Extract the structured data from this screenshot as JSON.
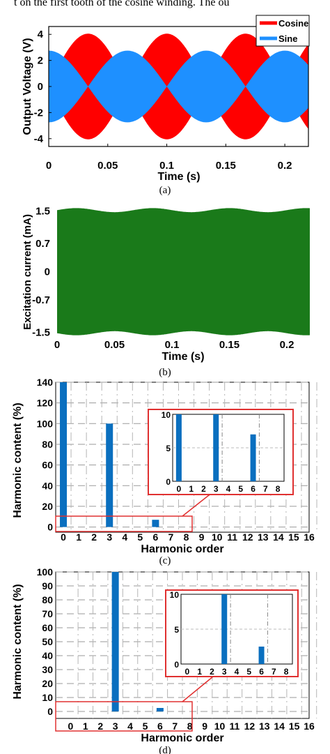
{
  "header_text": "t on the first tooth of the cosine winding. The ou",
  "captions": [
    "(a)",
    "(b)",
    "(c)",
    "(d)"
  ],
  "chart_data": [
    {
      "id": "a",
      "type": "line",
      "xlabel": "Time (s)",
      "ylabel": "Output Voltage (V)",
      "xlim": [
        0,
        0.22
      ],
      "ylim": [
        -4.6,
        4.6
      ],
      "xticks": [
        0,
        0.05,
        0.1,
        0.15,
        0.2
      ],
      "xtick_labels": [
        "0",
        "0.05",
        "0.1",
        "0.15",
        "0.2"
      ],
      "yticks": [
        -4,
        -2,
        0,
        2,
        4
      ],
      "ytick_labels": [
        "-4",
        "-2",
        "0",
        "2",
        "4"
      ],
      "legend": "top-right",
      "series": [
        {
          "name": "Cosine",
          "color": "#ff0000",
          "amplitude": 4.05,
          "period": 0.0667,
          "phase": "cosine-envelope"
        },
        {
          "name": "Sine",
          "color": "#1e90ff",
          "amplitude": 2.75,
          "period": 0.0667,
          "phase": "sine-envelope"
        }
      ]
    },
    {
      "id": "b",
      "type": "area",
      "xlabel": "Time (s)",
      "ylabel": "Excitation current (mA)",
      "xlim": [
        0,
        0.22
      ],
      "ylim": [
        -1.8,
        1.8
      ],
      "xticks": [
        0,
        0.05,
        0.1,
        0.15,
        0.2
      ],
      "xtick_labels": [
        "0",
        "0.05",
        "0.1",
        "0.15",
        "0.2"
      ],
      "yticks": [
        -1.5,
        -0.7,
        0,
        0.7,
        1.5
      ],
      "ytick_labels": [
        "-1.5",
        "-0.7",
        "0",
        "0.7",
        "1.5"
      ],
      "color": "#1a7a1a",
      "envelope_mean": 1.52,
      "envelope_ripple": 0.05
    },
    {
      "id": "c",
      "type": "bar",
      "xlabel": "Harmonic order",
      "ylabel": "Harmonic content (%)",
      "xlim": [
        -0.5,
        16
      ],
      "ylim": [
        -5,
        140
      ],
      "categories": [
        0,
        3,
        6
      ],
      "values": [
        140,
        100,
        7
      ],
      "xticks": [
        0,
        1,
        2,
        3,
        4,
        5,
        6,
        7,
        8,
        9,
        10,
        11,
        12,
        13,
        14,
        15,
        16
      ],
      "yticks": [
        0,
        20,
        40,
        60,
        80,
        100,
        120,
        140
      ],
      "ytick_labels": [
        "0",
        "20",
        "40",
        "60",
        "80",
        "100",
        "120",
        "140"
      ],
      "inset": {
        "xticks": [
          0,
          1,
          2,
          3,
          4,
          5,
          6,
          7,
          8
        ],
        "yticks": [
          0,
          5,
          10
        ],
        "ytick_labels": [
          "0",
          "5",
          "10"
        ],
        "ylim": [
          0,
          10
        ],
        "categories": [
          0,
          3,
          6
        ],
        "values": [
          10,
          10,
          7
        ]
      }
    },
    {
      "id": "d",
      "type": "bar",
      "xlabel": "Harmonic order",
      "ylabel": "Harmonic content (%)",
      "xlim": [
        -1,
        16
      ],
      "ylim": [
        -5,
        100
      ],
      "categories": [
        3,
        6
      ],
      "values": [
        100,
        2.5
      ],
      "xticks": [
        0,
        1,
        2,
        3,
        4,
        5,
        6,
        7,
        8,
        9,
        10,
        11,
        12,
        13,
        14,
        15,
        16
      ],
      "yticks": [
        0,
        10,
        20,
        30,
        40,
        50,
        60,
        70,
        80,
        90,
        100
      ],
      "ytick_labels": [
        "0",
        "10",
        "20",
        "30",
        "40",
        "50",
        "60",
        "70",
        "80",
        "90",
        "100"
      ],
      "inset": {
        "xticks": [
          0,
          1,
          2,
          3,
          4,
          5,
          6,
          7,
          8
        ],
        "yticks": [
          0,
          5,
          10
        ],
        "ytick_labels": [
          "0",
          "5",
          "10"
        ],
        "ylim": [
          0,
          10
        ],
        "categories": [
          3,
          6
        ],
        "values": [
          10,
          2.5
        ]
      }
    }
  ]
}
